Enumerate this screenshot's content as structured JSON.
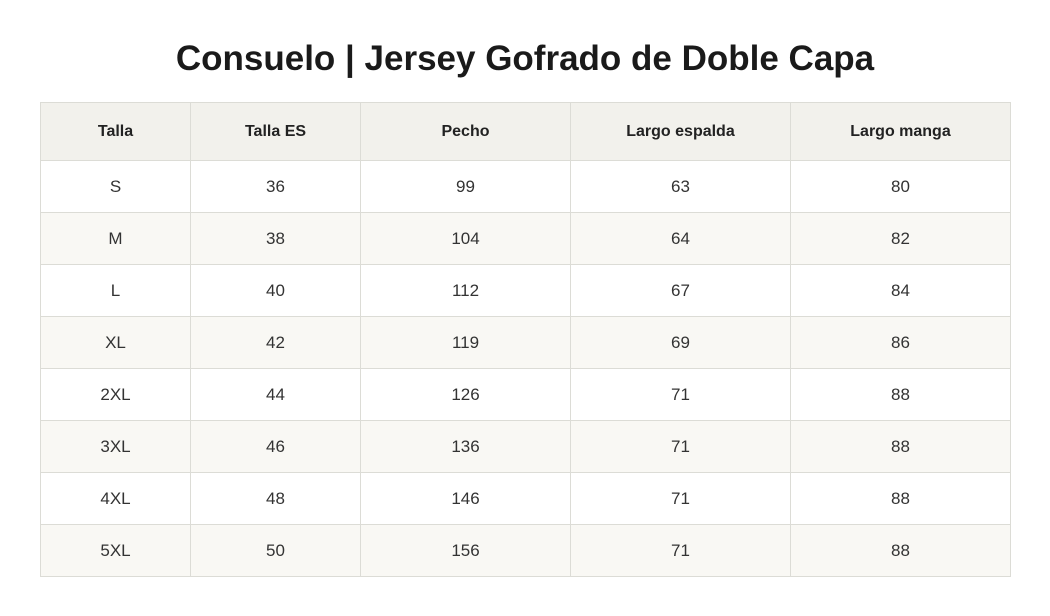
{
  "title": "Consuelo | Jersey Gofrado de Doble Capa",
  "table": {
    "headers": [
      "Talla",
      "Talla ES",
      "Pecho",
      "Largo espalda",
      "Largo manga"
    ],
    "rows": [
      [
        "S",
        "36",
        "99",
        "63",
        "80"
      ],
      [
        "M",
        "38",
        "104",
        "64",
        "82"
      ],
      [
        "L",
        "40",
        "112",
        "67",
        "84"
      ],
      [
        "XL",
        "42",
        "119",
        "69",
        "86"
      ],
      [
        "2XL",
        "44",
        "126",
        "71",
        "88"
      ],
      [
        "3XL",
        "46",
        "136",
        "71",
        "88"
      ],
      [
        "4XL",
        "48",
        "146",
        "71",
        "88"
      ],
      [
        "5XL",
        "50",
        "156",
        "71",
        "88"
      ]
    ]
  },
  "colors": {
    "header_background": "#f2f1ec",
    "row_alt_background": "#f9f8f4",
    "border": "#dcdcd6",
    "text": "#222222"
  }
}
